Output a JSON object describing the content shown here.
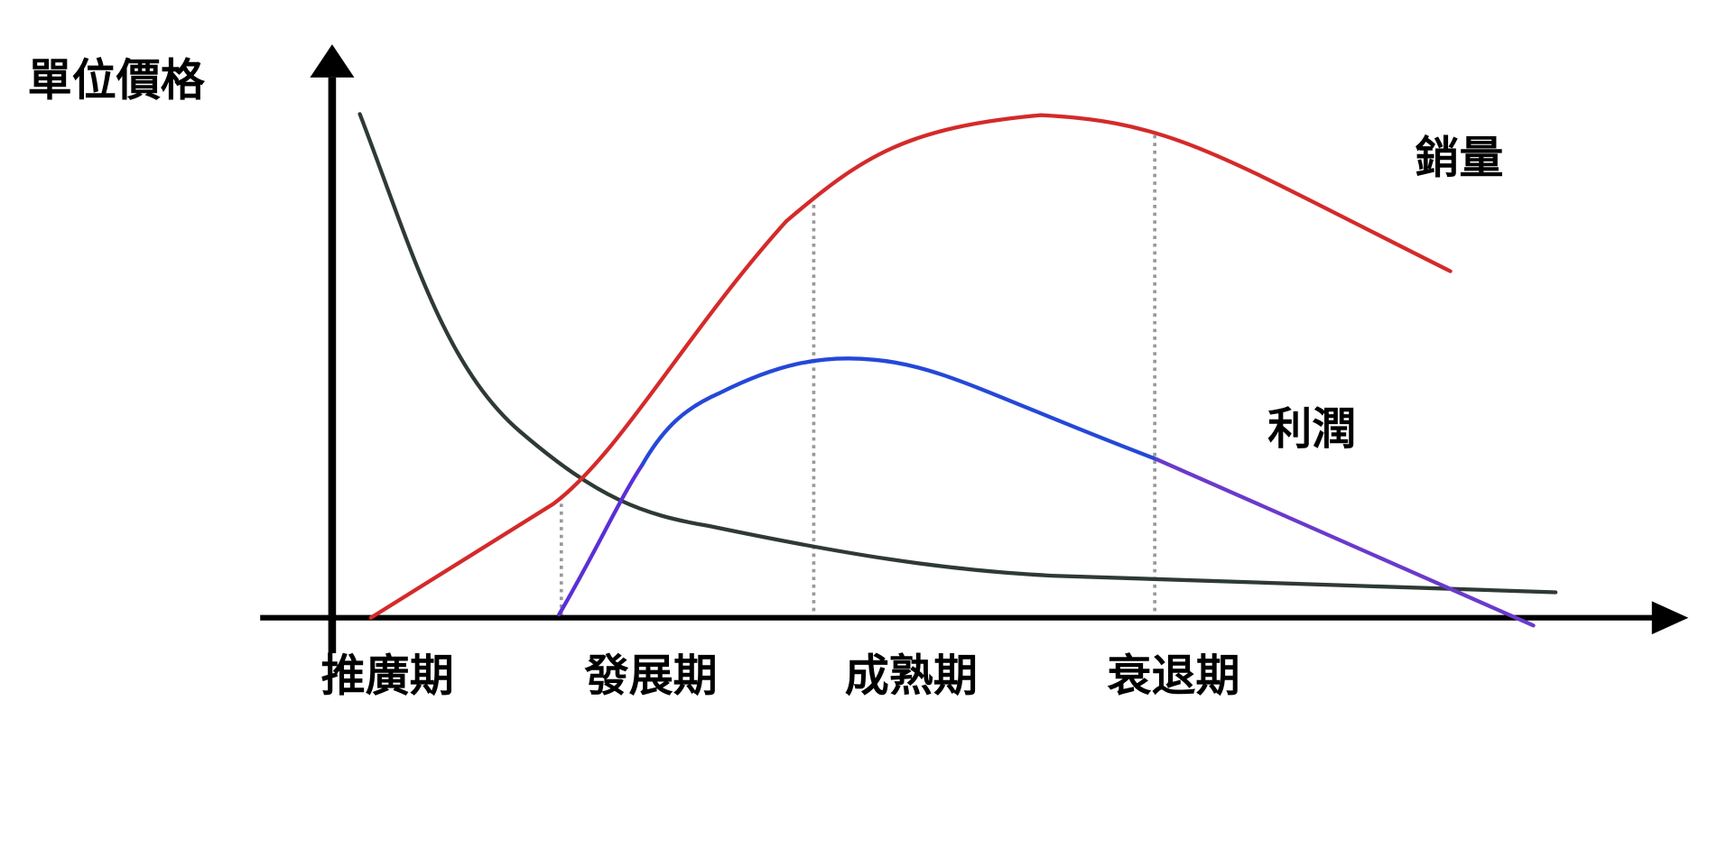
{
  "axis": {
    "y_label": "單位價格"
  },
  "curves": {
    "sales": "銷量",
    "profit": "利潤"
  },
  "stages": [
    "推廣期",
    "發展期",
    "成熟期",
    "衰退期"
  ]
}
